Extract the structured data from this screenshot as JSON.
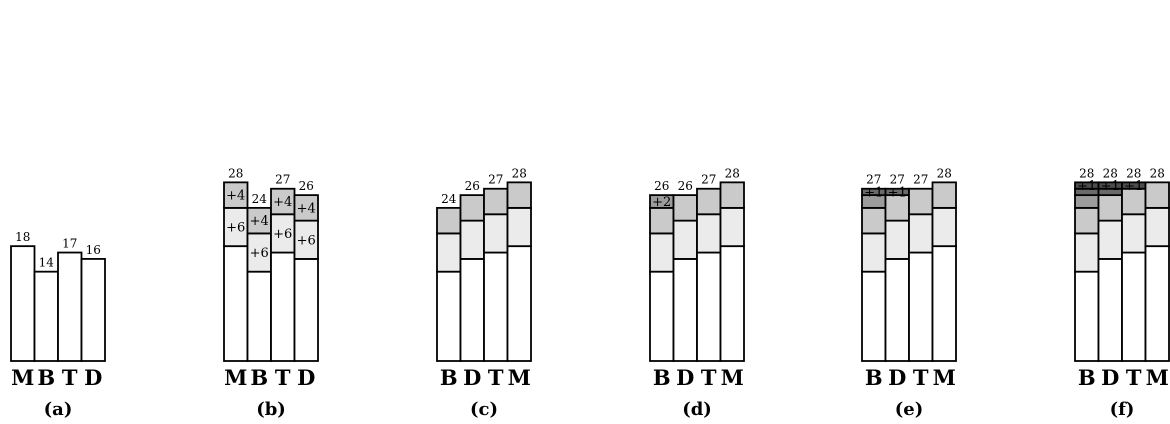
{
  "chart_data": [
    {
      "type": "bar",
      "stacked": true,
      "panel_label": "(a)",
      "categories": [
        "M",
        "B",
        "T",
        "D"
      ],
      "totals": [
        "18",
        "14",
        "17",
        "16"
      ],
      "bars": [
        {
          "segments": [
            {
              "value": 18,
              "fill": "#ffffff",
              "label": ""
            }
          ]
        },
        {
          "segments": [
            {
              "value": 14,
              "fill": "#ffffff",
              "label": ""
            }
          ]
        },
        {
          "segments": [
            {
              "value": 17,
              "fill": "#ffffff",
              "label": ""
            }
          ]
        },
        {
          "segments": [
            {
              "value": 16,
              "fill": "#ffffff",
              "label": ""
            }
          ]
        }
      ]
    },
    {
      "type": "bar",
      "stacked": true,
      "panel_label": "(b)",
      "categories": [
        "M",
        "B",
        "T",
        "D"
      ],
      "totals": [
        "28",
        "24",
        "27",
        "26"
      ],
      "bars": [
        {
          "segments": [
            {
              "value": 18,
              "fill": "#ffffff",
              "label": ""
            },
            {
              "value": 24,
              "fill": "#ebebeb",
              "label": "+6"
            },
            {
              "value": 28,
              "fill": "#cacaca",
              "label": "+4"
            }
          ]
        },
        {
          "segments": [
            {
              "value": 14,
              "fill": "#ffffff",
              "label": ""
            },
            {
              "value": 20,
              "fill": "#ebebeb",
              "label": "+6"
            },
            {
              "value": 24,
              "fill": "#cacaca",
              "label": "+4"
            }
          ]
        },
        {
          "segments": [
            {
              "value": 17,
              "fill": "#ffffff",
              "label": ""
            },
            {
              "value": 23,
              "fill": "#ebebeb",
              "label": "+6"
            },
            {
              "value": 27,
              "fill": "#cacaca",
              "label": "+4"
            }
          ]
        },
        {
          "segments": [
            {
              "value": 16,
              "fill": "#ffffff",
              "label": ""
            },
            {
              "value": 22,
              "fill": "#ebebeb",
              "label": "+6"
            },
            {
              "value": 26,
              "fill": "#cacaca",
              "label": "+4"
            }
          ]
        }
      ]
    },
    {
      "type": "bar",
      "stacked": true,
      "panel_label": "(c)",
      "categories": [
        "B",
        "D",
        "T",
        "M"
      ],
      "totals": [
        "24",
        "26",
        "27",
        "28"
      ],
      "bars": [
        {
          "segments": [
            {
              "value": 14,
              "fill": "#ffffff",
              "label": ""
            },
            {
              "value": 20,
              "fill": "#ebebeb",
              "label": ""
            },
            {
              "value": 24,
              "fill": "#cacaca",
              "label": ""
            }
          ]
        },
        {
          "segments": [
            {
              "value": 16,
              "fill": "#ffffff",
              "label": ""
            },
            {
              "value": 22,
              "fill": "#ebebeb",
              "label": ""
            },
            {
              "value": 26,
              "fill": "#cacaca",
              "label": ""
            }
          ]
        },
        {
          "segments": [
            {
              "value": 17,
              "fill": "#ffffff",
              "label": ""
            },
            {
              "value": 23,
              "fill": "#ebebeb",
              "label": ""
            },
            {
              "value": 27,
              "fill": "#cacaca",
              "label": ""
            }
          ]
        },
        {
          "segments": [
            {
              "value": 18,
              "fill": "#ffffff",
              "label": ""
            },
            {
              "value": 24,
              "fill": "#ebebeb",
              "label": ""
            },
            {
              "value": 28,
              "fill": "#cacaca",
              "label": ""
            }
          ]
        }
      ]
    },
    {
      "type": "bar",
      "stacked": true,
      "panel_label": "(d)",
      "categories": [
        "B",
        "D",
        "T",
        "M"
      ],
      "totals": [
        "26",
        "26",
        "27",
        "28"
      ],
      "bars": [
        {
          "segments": [
            {
              "value": 14,
              "fill": "#ffffff",
              "label": ""
            },
            {
              "value": 20,
              "fill": "#ebebeb",
              "label": ""
            },
            {
              "value": 24,
              "fill": "#cacaca",
              "label": ""
            },
            {
              "value": 26,
              "fill": "#9c9c9c",
              "label": "+2"
            }
          ]
        },
        {
          "segments": [
            {
              "value": 16,
              "fill": "#ffffff",
              "label": ""
            },
            {
              "value": 22,
              "fill": "#ebebeb",
              "label": ""
            },
            {
              "value": 26,
              "fill": "#cacaca",
              "label": ""
            }
          ]
        },
        {
          "segments": [
            {
              "value": 17,
              "fill": "#ffffff",
              "label": ""
            },
            {
              "value": 23,
              "fill": "#ebebeb",
              "label": ""
            },
            {
              "value": 27,
              "fill": "#cacaca",
              "label": ""
            }
          ]
        },
        {
          "segments": [
            {
              "value": 18,
              "fill": "#ffffff",
              "label": ""
            },
            {
              "value": 24,
              "fill": "#ebebeb",
              "label": ""
            },
            {
              "value": 28,
              "fill": "#cacaca",
              "label": ""
            }
          ]
        }
      ]
    },
    {
      "type": "bar",
      "stacked": true,
      "panel_label": "(e)",
      "categories": [
        "B",
        "D",
        "T",
        "M"
      ],
      "totals": [
        "27",
        "27",
        "27",
        "28"
      ],
      "bars": [
        {
          "segments": [
            {
              "value": 14,
              "fill": "#ffffff",
              "label": ""
            },
            {
              "value": 20,
              "fill": "#ebebeb",
              "label": ""
            },
            {
              "value": 24,
              "fill": "#cacaca",
              "label": ""
            },
            {
              "value": 26,
              "fill": "#9c9c9c",
              "label": ""
            },
            {
              "value": 27,
              "fill": "#6a6a6a",
              "label": "+1"
            }
          ]
        },
        {
          "segments": [
            {
              "value": 16,
              "fill": "#ffffff",
              "label": ""
            },
            {
              "value": 22,
              "fill": "#ebebeb",
              "label": ""
            },
            {
              "value": 26,
              "fill": "#cacaca",
              "label": ""
            },
            {
              "value": 27,
              "fill": "#6a6a6a",
              "label": "+1"
            }
          ]
        },
        {
          "segments": [
            {
              "value": 17,
              "fill": "#ffffff",
              "label": ""
            },
            {
              "value": 23,
              "fill": "#ebebeb",
              "label": ""
            },
            {
              "value": 27,
              "fill": "#cacaca",
              "label": ""
            }
          ]
        },
        {
          "segments": [
            {
              "value": 18,
              "fill": "#ffffff",
              "label": ""
            },
            {
              "value": 24,
              "fill": "#ebebeb",
              "label": ""
            },
            {
              "value": 28,
              "fill": "#cacaca",
              "label": ""
            }
          ]
        }
      ]
    },
    {
      "type": "bar",
      "stacked": true,
      "panel_label": "(f)",
      "categories": [
        "B",
        "D",
        "T",
        "M"
      ],
      "totals": [
        "28",
        "28",
        "28",
        "28"
      ],
      "bars": [
        {
          "segments": [
            {
              "value": 14,
              "fill": "#ffffff",
              "label": ""
            },
            {
              "value": 20,
              "fill": "#ebebeb",
              "label": ""
            },
            {
              "value": 24,
              "fill": "#cacaca",
              "label": ""
            },
            {
              "value": 26,
              "fill": "#9c9c9c",
              "label": ""
            },
            {
              "value": 27,
              "fill": "#6a6a6a",
              "label": ""
            },
            {
              "value": 28,
              "fill": "#4d4d4d",
              "label": "+1"
            }
          ]
        },
        {
          "segments": [
            {
              "value": 16,
              "fill": "#ffffff",
              "label": ""
            },
            {
              "value": 22,
              "fill": "#ebebeb",
              "label": ""
            },
            {
              "value": 26,
              "fill": "#cacaca",
              "label": ""
            },
            {
              "value": 27,
              "fill": "#6a6a6a",
              "label": ""
            },
            {
              "value": 28,
              "fill": "#4d4d4d",
              "label": "+1"
            }
          ]
        },
        {
          "segments": [
            {
              "value": 17,
              "fill": "#ffffff",
              "label": ""
            },
            {
              "value": 23,
              "fill": "#ebebeb",
              "label": ""
            },
            {
              "value": 27,
              "fill": "#cacaca",
              "label": ""
            },
            {
              "value": 28,
              "fill": "#4d4d4d",
              "label": "+1"
            }
          ]
        },
        {
          "segments": [
            {
              "value": 18,
              "fill": "#ffffff",
              "label": ""
            },
            {
              "value": 24,
              "fill": "#ebebeb",
              "label": ""
            },
            {
              "value": 28,
              "fill": "#cacaca",
              "label": ""
            }
          ]
        }
      ]
    }
  ]
}
